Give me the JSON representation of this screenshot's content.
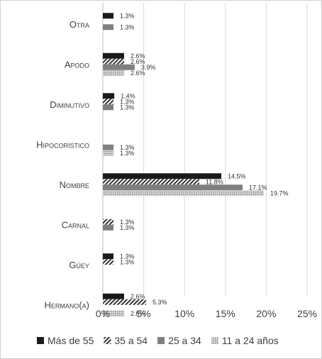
{
  "chart_data": {
    "type": "bar",
    "orientation": "horizontal",
    "title": "",
    "xlabel": "",
    "ylabel": "",
    "xlim": [
      0,
      25
    ],
    "x_ticks": [
      "0%",
      "5%",
      "10%",
      "15%",
      "20%",
      "25%"
    ],
    "grid": true,
    "legend_position": "bottom",
    "categories": [
      "Otra",
      "Apodo",
      "Diminutivo",
      "Hipocorístico",
      "Nombre",
      "Carnal",
      "Güey",
      "Hermano(a)"
    ],
    "series": [
      {
        "name": "Más de 55",
        "color": "#1a1a1a",
        "pattern": "solid",
        "values": [
          1.3,
          2.6,
          1.4,
          null,
          14.5,
          null,
          1.3,
          2.6
        ],
        "labels": [
          "1.3%",
          "2.6%",
          "1.4%",
          "",
          "14.5%",
          "",
          "1.3%",
          "2.6%"
        ]
      },
      {
        "name": "35 a 54",
        "color": "#404040",
        "pattern": "diagonal",
        "values": [
          null,
          2.6,
          1.3,
          null,
          11.8,
          1.3,
          1.3,
          5.3
        ],
        "labels": [
          "",
          "2.6%",
          "1.3%",
          "",
          "11.8%",
          "1.3%",
          "1.3%",
          "5.3%"
        ]
      },
      {
        "name": "25 a 34",
        "color": "#7f7f7f",
        "pattern": "solid",
        "values": [
          1.3,
          3.9,
          1.3,
          1.3,
          17.1,
          1.3,
          null,
          null
        ],
        "labels": [
          "1.3%",
          "3.9%",
          "1.3%",
          "1.3%",
          "17.1%",
          "1.3%",
          "",
          ""
        ]
      },
      {
        "name": "11 a 24 años",
        "color": "#a6a6a6",
        "pattern": "dots",
        "values": [
          null,
          2.6,
          null,
          1.3,
          19.7,
          null,
          null,
          2.6
        ],
        "labels": [
          "",
          "2.6%",
          "",
          "1.3%",
          "19.7%",
          "",
          "",
          "2.6%"
        ]
      }
    ]
  }
}
